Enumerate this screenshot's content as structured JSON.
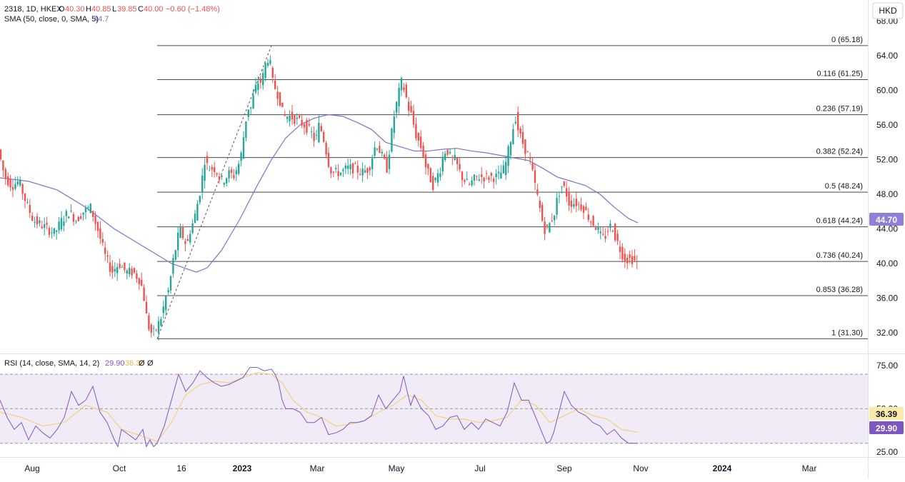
{
  "header": {
    "symbol": "2318, 1D, HKEX",
    "o_label": "O",
    "o_value": "40.30",
    "h_label": "H",
    "h_value": "40.85",
    "l_label": "L",
    "l_value": "39.85",
    "c_label": "C",
    "c_value": "40.00",
    "change": "−0.60 (−1.48%)",
    "sma_label": "SMA (50, close, 0, SMA, 5)",
    "sma_value": "44.7",
    "currency": "HKD"
  },
  "rsi_header": {
    "label": "RSI (14, close, SMA, 14, 2)",
    "rsi_value": "29.90",
    "ma_value": "36.39",
    "extra1": "Ø",
    "extra2": "Ø"
  },
  "colors": {
    "up": "#26a69a",
    "down": "#ef5350",
    "sma": "#7e72c8",
    "rsi": "#7e57c2",
    "rsi_ma": "#f3d27a",
    "rsi_band": "#ede7f6",
    "fib": "#4a4a4a",
    "axis_text": "#131722",
    "grid": "#e6e6e6",
    "sma_tag_bg": "#8f7fd6",
    "rsi_tag_bg": "#7e57c2",
    "rsi_ma_tag_bg": "#fde9a9"
  },
  "chart_data": {
    "type": "candlestick",
    "title": "2318, 1D, HKEX",
    "price_axis": {
      "ticks": [
        "32.00",
        "36.00",
        "40.00",
        "44.00",
        "48.00",
        "52.00",
        "56.00",
        "60.00",
        "64.00",
        "68.00"
      ],
      "range": [
        29.6,
        68.8
      ]
    },
    "time_axis": {
      "ticks": [
        "Aug",
        "Oct",
        "16",
        "2023",
        "Mar",
        "May",
        "Jul",
        "Sep",
        "Nov",
        "2024",
        "Mar"
      ]
    },
    "fibonacci": [
      {
        "label": "0 (65.18)",
        "value": 65.18
      },
      {
        "label": "0.116 (61.25)",
        "value": 61.25
      },
      {
        "label": "0.236 (57.19)",
        "value": 57.19
      },
      {
        "label": "0.382 (52.24)",
        "value": 52.24
      },
      {
        "label": "0.5 (48.24)",
        "value": 48.24
      },
      {
        "label": "0.618 (44.24)",
        "value": 44.24
      },
      {
        "label": "0.736 (40.24)",
        "value": 40.24
      },
      {
        "label": "0.853 (36.28)",
        "value": 36.28
      },
      {
        "label": "1 (31.30)",
        "value": 31.3
      }
    ],
    "price_points": [
      [
        0,
        53.5
      ],
      [
        10,
        50
      ],
      [
        20,
        49
      ],
      [
        30,
        49.5
      ],
      [
        40,
        47
      ],
      [
        50,
        45
      ],
      [
        60,
        44.5
      ],
      [
        70,
        44
      ],
      [
        80,
        43.5
      ],
      [
        90,
        45
      ],
      [
        100,
        46
      ],
      [
        110,
        45
      ],
      [
        120,
        46
      ],
      [
        130,
        46.5
      ],
      [
        140,
        44
      ],
      [
        150,
        41
      ],
      [
        160,
        39
      ],
      [
        170,
        40
      ],
      [
        180,
        39
      ],
      [
        190,
        39
      ],
      [
        200,
        38
      ],
      [
        205,
        36
      ],
      [
        210,
        33
      ],
      [
        215,
        32
      ],
      [
        220,
        32
      ],
      [
        225,
        33
      ],
      [
        230,
        34
      ],
      [
        235,
        36
      ],
      [
        240,
        37
      ],
      [
        245,
        40
      ],
      [
        250,
        42
      ],
      [
        255,
        44
      ],
      [
        260,
        43
      ],
      [
        265,
        42
      ],
      [
        270,
        44
      ],
      [
        275,
        45
      ],
      [
        280,
        47
      ],
      [
        285,
        49
      ],
      [
        290,
        52
      ],
      [
        295,
        51
      ],
      [
        300,
        51
      ],
      [
        305,
        51
      ],
      [
        310,
        50
      ],
      [
        315,
        49.5
      ],
      [
        320,
        50
      ],
      [
        325,
        50.5
      ],
      [
        330,
        50
      ],
      [
        335,
        51
      ],
      [
        340,
        52
      ],
      [
        345,
        55
      ],
      [
        350,
        58
      ],
      [
        355,
        58
      ],
      [
        360,
        60
      ],
      [
        365,
        61
      ],
      [
        370,
        61
      ],
      [
        375,
        63
      ],
      [
        380,
        64
      ],
      [
        385,
        61
      ],
      [
        390,
        60
      ],
      [
        395,
        59
      ],
      [
        400,
        57
      ],
      [
        410,
        57
      ],
      [
        420,
        56.5
      ],
      [
        430,
        56
      ],
      [
        440,
        55
      ],
      [
        445,
        54
      ],
      [
        450,
        56
      ],
      [
        455,
        55
      ],
      [
        460,
        53
      ],
      [
        465,
        51
      ],
      [
        470,
        50.5
      ],
      [
        480,
        50.5
      ],
      [
        490,
        51
      ],
      [
        500,
        51
      ],
      [
        510,
        50.5
      ],
      [
        520,
        51
      ],
      [
        530,
        54
      ],
      [
        540,
        52
      ],
      [
        545,
        51
      ],
      [
        550,
        54
      ],
      [
        555,
        57
      ],
      [
        560,
        59
      ],
      [
        565,
        61
      ],
      [
        570,
        60
      ],
      [
        575,
        58
      ],
      [
        580,
        57
      ],
      [
        585,
        55
      ],
      [
        590,
        54
      ],
      [
        595,
        53
      ],
      [
        600,
        51
      ],
      [
        605,
        50
      ],
      [
        610,
        49
      ],
      [
        615,
        50
      ],
      [
        620,
        51
      ],
      [
        625,
        53
      ],
      [
        630,
        53
      ],
      [
        635,
        52
      ],
      [
        640,
        52
      ],
      [
        645,
        51
      ],
      [
        650,
        50
      ],
      [
        660,
        49
      ],
      [
        670,
        50
      ],
      [
        680,
        50
      ],
      [
        690,
        50
      ],
      [
        700,
        50
      ],
      [
        710,
        51
      ],
      [
        715,
        53
      ],
      [
        720,
        55
      ],
      [
        725,
        57
      ],
      [
        730,
        55
      ],
      [
        735,
        54
      ],
      [
        740,
        53
      ],
      [
        745,
        52
      ],
      [
        750,
        50
      ],
      [
        755,
        48
      ],
      [
        760,
        46
      ],
      [
        765,
        44
      ],
      [
        770,
        44
      ],
      [
        775,
        45
      ],
      [
        780,
        46
      ],
      [
        785,
        48
      ],
      [
        790,
        49
      ],
      [
        795,
        48.5
      ],
      [
        800,
        47
      ],
      [
        810,
        47
      ],
      [
        820,
        46.5
      ],
      [
        830,
        45
      ],
      [
        840,
        44
      ],
      [
        845,
        43
      ],
      [
        850,
        43
      ],
      [
        855,
        44
      ],
      [
        860,
        44.5
      ],
      [
        865,
        43
      ],
      [
        870,
        42
      ],
      [
        875,
        41
      ],
      [
        880,
        40.5
      ],
      [
        885,
        40.5
      ],
      [
        890,
        40.5
      ],
      [
        895,
        40
      ]
    ],
    "sma_points": [
      [
        0,
        49.9
      ],
      [
        40,
        49.5
      ],
      [
        80,
        48.5
      ],
      [
        120,
        46.5
      ],
      [
        160,
        44
      ],
      [
        200,
        42
      ],
      [
        240,
        40
      ],
      [
        275,
        39
      ],
      [
        290,
        39.5
      ],
      [
        310,
        41.5
      ],
      [
        335,
        45
      ],
      [
        360,
        49
      ],
      [
        380,
        52
      ],
      [
        400,
        54.5
      ],
      [
        420,
        56
      ],
      [
        440,
        56.8
      ],
      [
        460,
        57.2
      ],
      [
        480,
        57
      ],
      [
        500,
        56.3
      ],
      [
        520,
        55.5
      ],
      [
        540,
        54
      ],
      [
        560,
        53.5
      ],
      [
        580,
        53
      ],
      [
        600,
        53
      ],
      [
        620,
        53.2
      ],
      [
        640,
        53.3
      ],
      [
        660,
        53
      ],
      [
        680,
        52.8
      ],
      [
        700,
        52.5
      ],
      [
        720,
        52.2
      ],
      [
        740,
        51.9
      ],
      [
        760,
        51
      ],
      [
        780,
        50
      ],
      [
        800,
        49.5
      ],
      [
        820,
        49
      ],
      [
        840,
        48
      ],
      [
        860,
        46.5
      ],
      [
        880,
        45.2
      ],
      [
        893,
        44.7
      ]
    ],
    "rsi": {
      "levels": [
        70,
        50,
        30
      ],
      "ticks": [
        "75.00",
        "50.00",
        "25.00"
      ],
      "range": [
        22,
        80
      ],
      "rsi_points": [
        [
          0,
          55
        ],
        [
          10,
          45
        ],
        [
          20,
          38
        ],
        [
          30,
          42
        ],
        [
          40,
          32
        ],
        [
          50,
          40
        ],
        [
          60,
          36
        ],
        [
          70,
          33
        ],
        [
          80,
          38
        ],
        [
          90,
          45
        ],
        [
          100,
          60
        ],
        [
          110,
          52
        ],
        [
          120,
          55
        ],
        [
          130,
          63
        ],
        [
          140,
          48
        ],
        [
          150,
          42
        ],
        [
          160,
          32
        ],
        [
          165,
          28
        ],
        [
          170,
          38
        ],
        [
          180,
          35
        ],
        [
          190,
          32
        ],
        [
          200,
          38
        ],
        [
          205,
          28
        ],
        [
          210,
          32
        ],
        [
          215,
          28
        ],
        [
          220,
          30
        ],
        [
          230,
          40
        ],
        [
          240,
          55
        ],
        [
          250,
          70
        ],
        [
          260,
          60
        ],
        [
          270,
          65
        ],
        [
          280,
          72
        ],
        [
          290,
          68
        ],
        [
          300,
          65
        ],
        [
          310,
          63
        ],
        [
          320,
          64
        ],
        [
          330,
          66
        ],
        [
          340,
          68
        ],
        [
          350,
          74
        ],
        [
          360,
          74
        ],
        [
          370,
          72
        ],
        [
          380,
          73
        ],
        [
          385,
          70
        ],
        [
          390,
          65
        ],
        [
          395,
          55
        ],
        [
          400,
          50
        ],
        [
          410,
          50
        ],
        [
          420,
          48
        ],
        [
          430,
          42
        ],
        [
          440,
          42
        ],
        [
          450,
          45
        ],
        [
          460,
          35
        ],
        [
          470,
          36
        ],
        [
          480,
          38
        ],
        [
          490,
          42
        ],
        [
          500,
          42
        ],
        [
          510,
          43
        ],
        [
          520,
          46
        ],
        [
          530,
          58
        ],
        [
          540,
          50
        ],
        [
          550,
          55
        ],
        [
          560,
          60
        ],
        [
          565,
          69
        ],
        [
          570,
          60
        ],
        [
          575,
          52
        ],
        [
          580,
          58
        ],
        [
          590,
          50
        ],
        [
          600,
          46
        ],
        [
          610,
          38
        ],
        [
          620,
          40
        ],
        [
          630,
          45
        ],
        [
          640,
          46
        ],
        [
          650,
          38
        ],
        [
          660,
          42
        ],
        [
          670,
          38
        ],
        [
          680,
          44
        ],
        [
          690,
          42
        ],
        [
          700,
          40
        ],
        [
          710,
          48
        ],
        [
          720,
          65
        ],
        [
          730,
          55
        ],
        [
          740,
          55
        ],
        [
          750,
          45
        ],
        [
          760,
          35
        ],
        [
          765,
          30
        ],
        [
          770,
          31
        ],
        [
          775,
          36
        ],
        [
          780,
          44
        ],
        [
          790,
          60
        ],
        [
          800,
          52
        ],
        [
          810,
          48
        ],
        [
          820,
          46
        ],
        [
          830,
          42
        ],
        [
          840,
          40
        ],
        [
          850,
          35
        ],
        [
          860,
          38
        ],
        [
          870,
          33
        ],
        [
          880,
          30
        ],
        [
          890,
          30
        ],
        [
          893,
          29.9
        ]
      ],
      "ma_points": [
        [
          0,
          48
        ],
        [
          30,
          45
        ],
        [
          60,
          40
        ],
        [
          90,
          42
        ],
        [
          120,
          52
        ],
        [
          150,
          48
        ],
        [
          170,
          38
        ],
        [
          200,
          34
        ],
        [
          220,
          31
        ],
        [
          240,
          42
        ],
        [
          260,
          58
        ],
        [
          280,
          64
        ],
        [
          300,
          66
        ],
        [
          320,
          65
        ],
        [
          340,
          68
        ],
        [
          360,
          71
        ],
        [
          380,
          70
        ],
        [
          395,
          65
        ],
        [
          410,
          55
        ],
        [
          430,
          48
        ],
        [
          450,
          45
        ],
        [
          470,
          40
        ],
        [
          490,
          41
        ],
        [
          510,
          43
        ],
        [
          530,
          48
        ],
        [
          550,
          52
        ],
        [
          570,
          58
        ],
        [
          590,
          55
        ],
        [
          610,
          46
        ],
        [
          630,
          44
        ],
        [
          650,
          44
        ],
        [
          670,
          42
        ],
        [
          690,
          43
        ],
        [
          710,
          45
        ],
        [
          730,
          55
        ],
        [
          750,
          52
        ],
        [
          770,
          42
        ],
        [
          790,
          46
        ],
        [
          810,
          50
        ],
        [
          830,
          46
        ],
        [
          850,
          44
        ],
        [
          870,
          38
        ],
        [
          893,
          36.39
        ]
      ]
    }
  },
  "price_tags": {
    "sma_tag": "44.70",
    "rsi_ma_tag": "36.39",
    "rsi_tag": "29.90"
  }
}
